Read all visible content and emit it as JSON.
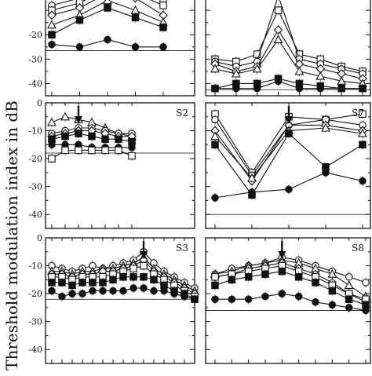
{
  "figure": {
    "ylabel": "Threshold modulation index in dB"
  },
  "chart_data": [
    {
      "type": "line",
      "panel": "top-left (cropped)",
      "title": "",
      "ylim": [
        -45,
        0
      ],
      "yticks": [
        -20,
        -30,
        -40
      ],
      "x": [
        1,
        2,
        3,
        4,
        5
      ],
      "reference_line": -26.5,
      "series": [
        {
          "marker": "circle-open",
          "values": [
            -8,
            -5,
            -1,
            -2,
            -6
          ]
        },
        {
          "marker": "square-open",
          "values": [
            -10,
            -7,
            -1,
            -3,
            -8
          ]
        },
        {
          "marker": "diamond-open",
          "values": [
            -12,
            -9,
            -3,
            -5,
            -12
          ]
        },
        {
          "marker": "triangle-open",
          "values": [
            -16,
            -12,
            -6,
            -10,
            -15
          ]
        },
        {
          "marker": "square-filled",
          "values": [
            -20,
            -14,
            -9,
            -13,
            -17
          ]
        },
        {
          "marker": "circle-filled",
          "values": [
            -24,
            -25,
            -22,
            -25,
            -25
          ]
        }
      ]
    },
    {
      "type": "line",
      "panel": "top-right (cropped)",
      "title": "",
      "ylim": [
        -45,
        0
      ],
      "yticks": [],
      "x": [
        1,
        2,
        3,
        4,
        5,
        6,
        7,
        8
      ],
      "reference_line": -42.5,
      "series": [
        {
          "marker": "square-open",
          "values": [
            -30,
            -31,
            -28,
            -10,
            -28,
            -30,
            -33,
            -35
          ]
        },
        {
          "marker": "circle-open",
          "values": [
            -31,
            -33,
            -31,
            -4,
            -30,
            -32,
            -34,
            -36
          ]
        },
        {
          "marker": "diamond-open",
          "values": [
            -32,
            -35,
            -33,
            -18,
            -32,
            -34,
            -36,
            -38
          ]
        },
        {
          "marker": "triangle-open",
          "values": [
            -34,
            -36,
            -34,
            -22,
            -35,
            -37,
            -39,
            -40
          ]
        },
        {
          "marker": "square-filled",
          "values": [
            -42,
            -40,
            -40,
            -38,
            -40,
            -41,
            -42,
            -42
          ]
        },
        {
          "marker": "circle-filled",
          "values": [
            -42,
            -42,
            -42,
            -39,
            -42,
            -42,
            -42,
            -42
          ]
        }
      ]
    },
    {
      "type": "line",
      "panel": "middle-left",
      "title": "S2",
      "ylim": [
        -45,
        0
      ],
      "yticks": [
        0,
        -10,
        -20,
        -30,
        -40
      ],
      "x": [
        1,
        2,
        3,
        4,
        5,
        6,
        7
      ],
      "arrow_at_x": 3,
      "reference_line": -18,
      "series": [
        {
          "marker": "triangle-open",
          "values": [
            -7,
            -5,
            -6,
            -7,
            -9,
            -11,
            -12
          ]
        },
        {
          "marker": "circle-open",
          "values": [
            -11,
            -10,
            -9,
            -9,
            -10,
            -11,
            -11
          ]
        },
        {
          "marker": "diamond-open",
          "values": [
            -12,
            -11,
            -10,
            -10,
            -11,
            -12,
            -12
          ]
        },
        {
          "marker": "square-filled",
          "values": [
            -13,
            -12,
            -11,
            -12,
            -13,
            -13,
            -14
          ]
        },
        {
          "marker": "circle-filled",
          "values": [
            -15,
            -15,
            -15,
            -16,
            -16,
            -16,
            -16
          ]
        },
        {
          "marker": "square-open",
          "values": [
            -20,
            -17,
            -17,
            -17,
            -17,
            -17,
            -19
          ]
        }
      ]
    },
    {
      "type": "line",
      "panel": "middle-right",
      "title": "S7",
      "ylim": [
        -45,
        0
      ],
      "yticks": [],
      "x": [
        1,
        2,
        3,
        4,
        5
      ],
      "arrow_at_x": 3,
      "reference_line": -40,
      "series": [
        {
          "marker": "square-open",
          "values": [
            -4,
            -25,
            -5,
            -6,
            -4
          ]
        },
        {
          "marker": "circle-open",
          "values": [
            -6,
            -26,
            -8,
            -6,
            -8
          ]
        },
        {
          "marker": "diamond-open",
          "values": [
            -10,
            -28,
            -8,
            -8,
            -10
          ]
        },
        {
          "marker": "triangle-open",
          "values": [
            -12,
            -27,
            -10,
            -9,
            -11
          ]
        },
        {
          "marker": "square-filled",
          "values": [
            -15,
            -33,
            -11,
            -23,
            -15
          ]
        },
        {
          "marker": "circle-filled",
          "values": [
            -34,
            -32,
            -31,
            -25,
            -28
          ]
        }
      ]
    },
    {
      "type": "line",
      "panel": "bottom-left",
      "title": "S3",
      "ylim": [
        -45,
        0
      ],
      "yticks": [
        0,
        -10,
        -20,
        -30,
        -40
      ],
      "x": [
        1,
        2,
        3,
        4,
        5,
        6,
        7,
        8,
        9,
        10,
        11,
        12,
        13,
        14,
        15
      ],
      "arrow_at_x": 10,
      "reference_line": -22,
      "series": [
        {
          "marker": "circle-open",
          "values": [
            -10,
            -11,
            -12,
            -11,
            -10,
            -11,
            -10,
            -9,
            -8,
            -5,
            -9,
            -12,
            -14,
            -16,
            -18
          ]
        },
        {
          "marker": "triangle-open",
          "values": [
            -12,
            -12,
            -13,
            -12,
            -12,
            -11,
            -11,
            -10,
            -9,
            -7,
            -11,
            -13,
            -15,
            -17,
            -19
          ]
        },
        {
          "marker": "diamond-open",
          "values": [
            -13,
            -13,
            -14,
            -13,
            -13,
            -12,
            -12,
            -11,
            -10,
            -8,
            -12,
            -14,
            -16,
            -18,
            -20
          ]
        },
        {
          "marker": "square-open",
          "values": [
            -14,
            -14,
            -15,
            -14,
            -14,
            -14,
            -13,
            -12,
            -11,
            -10,
            -13,
            -15,
            -17,
            -19,
            -21
          ]
        },
        {
          "marker": "square-filled",
          "values": [
            -16,
            -16,
            -17,
            -16,
            -16,
            -16,
            -15,
            -14,
            -14,
            -14,
            -15,
            -17,
            -19,
            -20,
            -22
          ]
        },
        {
          "marker": "circle-filled",
          "values": [
            -19,
            -21,
            -20,
            -20,
            -19,
            -19,
            -19,
            -19,
            -18,
            -18,
            -19,
            -19,
            -20,
            -21,
            -22
          ]
        }
      ]
    },
    {
      "type": "line",
      "panel": "bottom-right",
      "title": "S8",
      "ylim": [
        -45,
        0
      ],
      "yticks": [],
      "x": [
        1,
        2,
        3,
        4,
        5,
        6,
        7,
        8,
        9,
        10
      ],
      "arrow_at_x": 5,
      "reference_line": -26,
      "series": [
        {
          "marker": "circle-open",
          "values": [
            -13,
            -11,
            -10,
            -9,
            -7,
            -8,
            -10,
            -12,
            -14,
            -16
          ]
        },
        {
          "marker": "triangle-open",
          "values": [
            -13,
            -12,
            -10,
            -9,
            -8,
            -9,
            -11,
            -13,
            -17,
            -21
          ]
        },
        {
          "marker": "diamond-open",
          "values": [
            -14,
            -13,
            -11,
            -10,
            -9,
            -11,
            -13,
            -16,
            -20,
            -23
          ]
        },
        {
          "marker": "square-open",
          "values": [
            -14,
            -13,
            -12,
            -11,
            -10,
            -12,
            -14,
            -17,
            -20,
            -22
          ]
        },
        {
          "marker": "square-filled",
          "values": [
            -17,
            -15,
            -14,
            -13,
            -12,
            -14,
            -16,
            -19,
            -22,
            -24
          ]
        },
        {
          "marker": "circle-filled",
          "values": [
            -22,
            -22,
            -22,
            -21,
            -20,
            -21,
            -23,
            -24,
            -25,
            -26
          ]
        }
      ]
    }
  ]
}
